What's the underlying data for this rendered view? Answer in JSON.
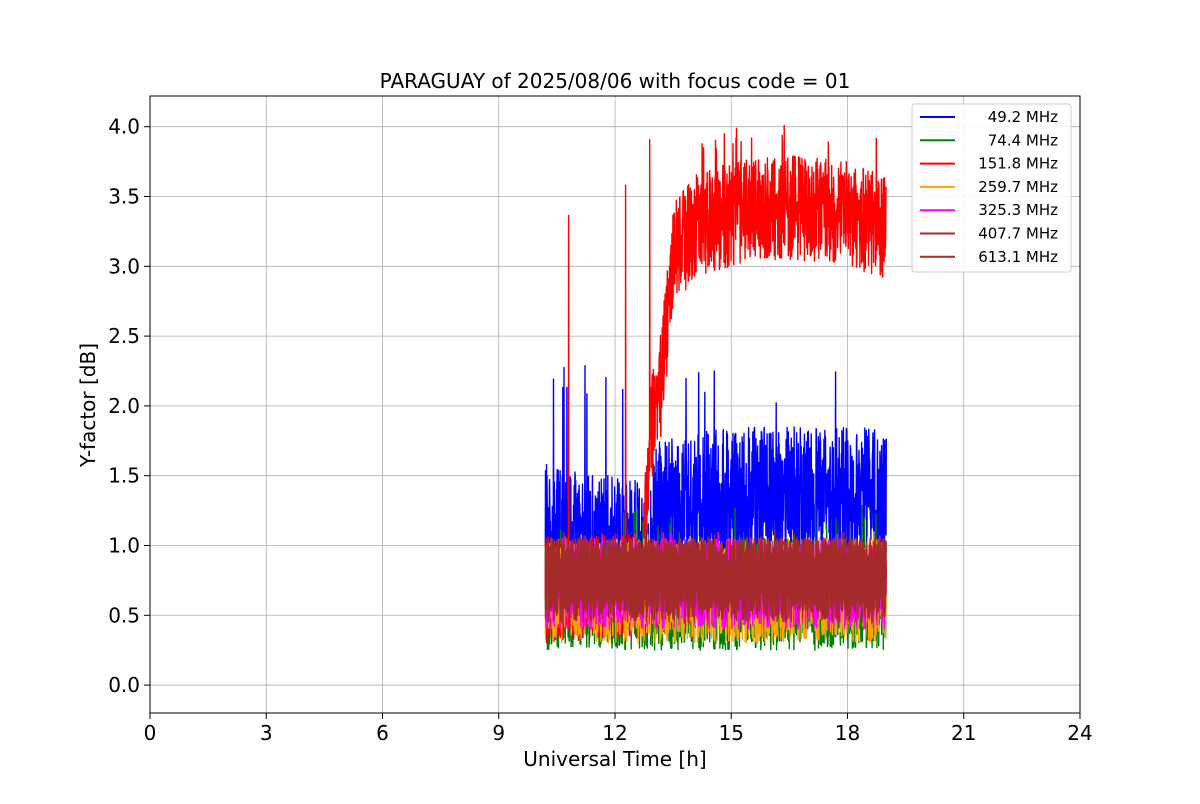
{
  "chart_data": {
    "type": "line",
    "title": "PARAGUAY of 2025/08/06 with focus code = 01",
    "xlabel": "Universal Time [h]",
    "ylabel": "Y-factor [dB]",
    "xlim": [
      0,
      24
    ],
    "ylim": [
      -0.2,
      4.22
    ],
    "xticks": [
      0,
      3,
      6,
      9,
      12,
      15,
      18,
      21,
      24
    ],
    "xtick_labels": [
      "0",
      "3",
      "6",
      "9",
      "12",
      "15",
      "18",
      "21",
      "24"
    ],
    "yticks": [
      0.0,
      0.5,
      1.0,
      1.5,
      2.0,
      2.5,
      3.0,
      3.5,
      4.0
    ],
    "ytick_labels": [
      "0.0",
      "0.5",
      "1.0",
      "1.5",
      "2.0",
      "2.5",
      "3.0",
      "3.5",
      "4.0"
    ],
    "grid": true,
    "legend_position": "top-right",
    "time_range": [
      10.2,
      19.0
    ],
    "series": [
      {
        "name": "49.2 MHz",
        "color": "#0000ff",
        "approx_profile": [
          [
            10.2,
            1.1
          ],
          [
            10.5,
            1.0
          ],
          [
            12.0,
            0.95
          ],
          [
            12.8,
            0.9
          ],
          [
            13.0,
            1.2
          ],
          [
            15.0,
            1.3
          ],
          [
            18.0,
            1.3
          ],
          [
            19.0,
            1.3
          ]
        ],
        "noise_low": 0.45,
        "noise_high": 0.55,
        "peak": 2.32
      },
      {
        "name": "74.4 MHz",
        "color": "#008000",
        "approx_profile": [
          [
            10.2,
            0.6
          ],
          [
            19.0,
            0.6
          ]
        ],
        "noise_low": 0.35,
        "noise_high": 0.45,
        "peak": 1.3
      },
      {
        "name": "151.8 MHz",
        "color": "#ff0000",
        "approx_profile": [
          [
            10.2,
            0.7
          ],
          [
            12.7,
            0.75
          ],
          [
            12.9,
            1.8
          ],
          [
            13.2,
            2.2
          ],
          [
            13.5,
            3.1
          ],
          [
            14.0,
            3.3
          ],
          [
            15.0,
            3.4
          ],
          [
            16.5,
            3.45
          ],
          [
            18.0,
            3.4
          ],
          [
            19.0,
            3.3
          ]
        ],
        "noise_low": 0.4,
        "noise_high": 0.35,
        "peak": 4.02
      },
      {
        "name": "259.7 MHz",
        "color": "#ffa500",
        "approx_profile": [
          [
            10.2,
            0.65
          ],
          [
            19.0,
            0.65
          ]
        ],
        "noise_low": 0.35,
        "noise_high": 0.4,
        "peak": 1.1
      },
      {
        "name": "325.3 MHz",
        "color": "#ff00ff",
        "approx_profile": [
          [
            10.2,
            0.7
          ],
          [
            19.0,
            0.7
          ]
        ],
        "noise_low": 0.3,
        "noise_high": 0.35,
        "peak": 1.1
      },
      {
        "name": "407.7 MHz",
        "color": "#a52a2a",
        "approx_profile": [
          [
            10.2,
            0.75
          ],
          [
            19.0,
            0.75
          ]
        ],
        "noise_low": 0.3,
        "noise_high": 0.3,
        "peak": 1.1
      },
      {
        "name": "613.1 MHz",
        "color": "#a52a2a",
        "approx_profile": [
          [
            10.2,
            0.78
          ],
          [
            19.0,
            0.78
          ]
        ],
        "noise_low": 0.25,
        "noise_high": 0.28,
        "peak": 1.1
      }
    ]
  }
}
